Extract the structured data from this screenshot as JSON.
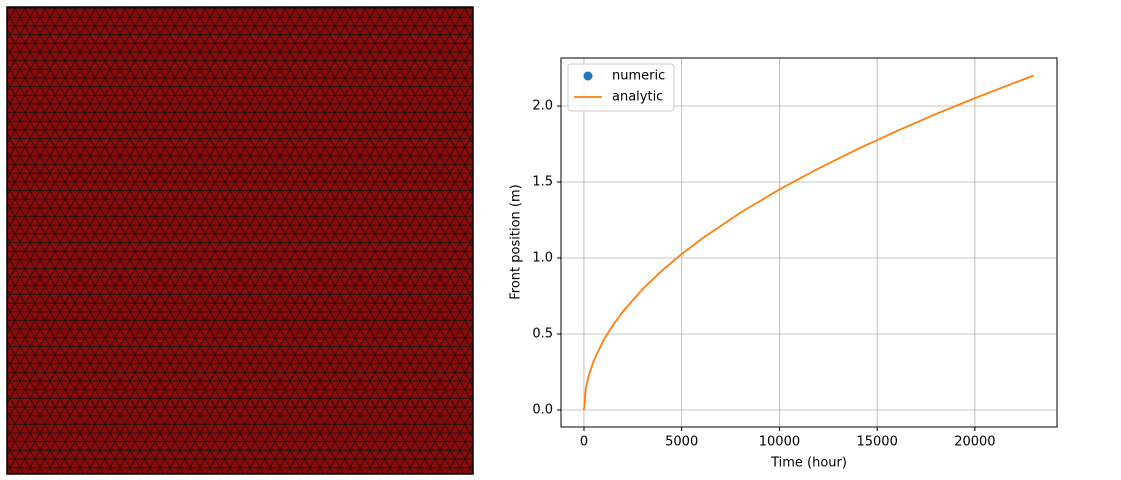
{
  "chart_data": {
    "type": "line",
    "xlabel": "Time (hour)",
    "ylabel": "Front position (m)",
    "series": [
      {
        "name": "numeric",
        "color": "#1f77b4",
        "x": [],
        "values": []
      },
      {
        "name": "analytic",
        "color": "#ff7f0e",
        "x": [
          0,
          100,
          250,
          500,
          1000,
          1500,
          2000,
          3000,
          4000,
          5000,
          6000,
          8000,
          10000,
          12000,
          14000,
          16000,
          18000,
          20000,
          22000,
          23000
        ],
        "values": [
          0,
          0.145,
          0.229,
          0.324,
          0.459,
          0.562,
          0.649,
          0.795,
          0.918,
          1.026,
          1.124,
          1.298,
          1.451,
          1.589,
          1.717,
          1.835,
          1.947,
          2.052,
          2.152,
          2.2
        ]
      }
    ],
    "xlim": [
      -1175,
      24200
    ],
    "ylim": [
      -0.112,
      2.316
    ],
    "xticks": [
      0,
      5000,
      10000,
      15000,
      20000
    ],
    "yticks": [
      {
        "value": 0,
        "label": "0.0"
      },
      0.5,
      {
        "value": 1,
        "label": "1.0"
      },
      1.5,
      {
        "value": 2,
        "label": "2.0"
      }
    ],
    "grid": true,
    "legend": "upper left"
  }
}
